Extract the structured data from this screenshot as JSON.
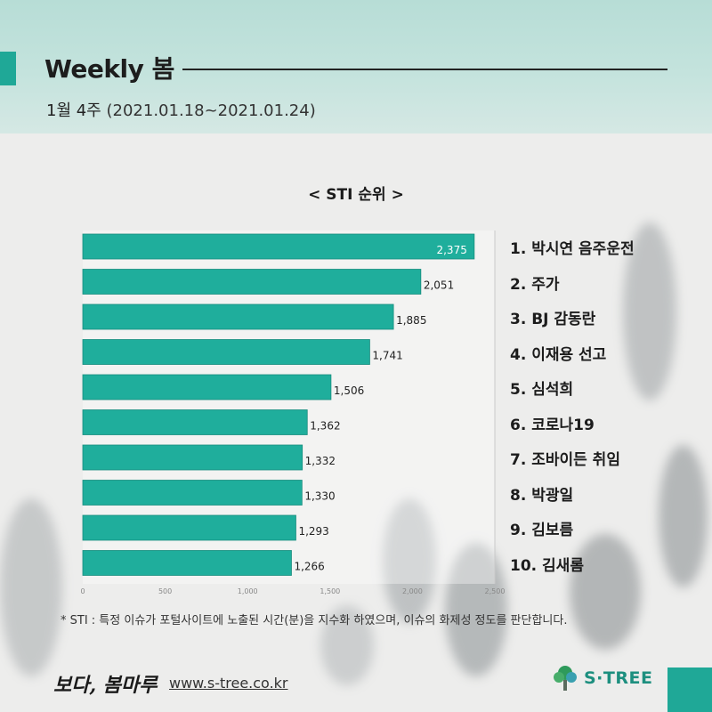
{
  "header": {
    "title": "Weekly 봄",
    "week": "1월 4주",
    "range": "(2021.01.18~2021.01.24)"
  },
  "chart_data": {
    "type": "bar",
    "orientation": "horizontal",
    "title": "< STI 순위 >",
    "categories": [
      "1. 박시연 음주운전",
      "2. 주가",
      "3. BJ 감동란",
      "4. 이재용 선고",
      "5. 심석희",
      "6. 코로나19",
      "7. 조바이든 취임",
      "8. 박광일",
      "9. 김보름",
      "10. 김새롬"
    ],
    "values": [
      2375,
      2051,
      1885,
      1741,
      1506,
      1362,
      1332,
      1330,
      1293,
      1266
    ],
    "value_labels": [
      "2,375",
      "2,051",
      "1,885",
      "1,741",
      "1,506",
      "1,362",
      "1,332",
      "1,330",
      "1,293",
      "1,266"
    ],
    "xlim": [
      0,
      2500
    ],
    "xticks": [
      "0",
      "500",
      "1,000",
      "1,500",
      "2,000",
      "2,500"
    ],
    "bar_color": "#1fae9c",
    "grid": false,
    "legend": "none"
  },
  "footnote": "* STI : 특정 이슈가 포털사이트에 노출된 시간(분)을 지수화 하였으며, 이슈의 화제성 정도를 판단합니다.",
  "footer": {
    "brand": "보다, 봄마루",
    "url": "www.s-tree.co.kr",
    "logo_text": "S·TREE"
  },
  "colors": {
    "accent": "#1fa897",
    "header_bg": "#c4e3dd",
    "bar": "#1fae9c"
  }
}
